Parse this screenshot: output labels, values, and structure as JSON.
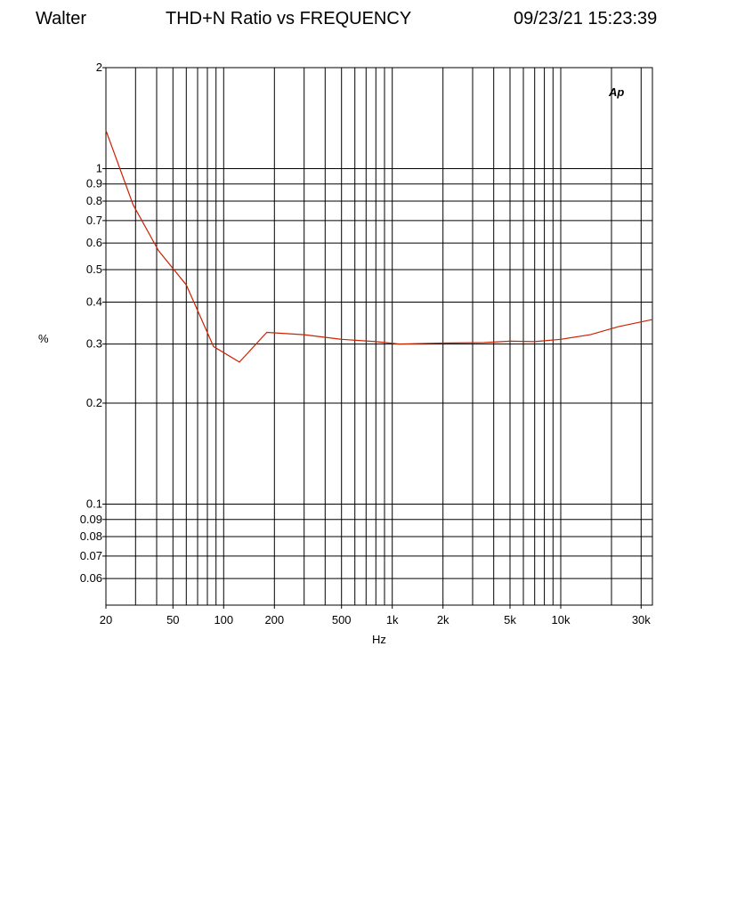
{
  "header": {
    "left": "Walter",
    "title": "THD+N Ratio vs FREQUENCY",
    "right": "09/23/21 15:23:39"
  },
  "logo": {
    "text": "Ap",
    "color": "#1f4fe0"
  },
  "chart_data": {
    "type": "line",
    "title": "THD+N Ratio vs FREQUENCY",
    "xlabel": "Hz",
    "ylabel": "%",
    "x_scale": "log",
    "y_scale": "log",
    "xlim": [
      20,
      35000
    ],
    "ylim": [
      0.05,
      2
    ],
    "grid": true,
    "x_ticks": [
      {
        "v": 20,
        "label": "20"
      },
      {
        "v": 50,
        "label": "50"
      },
      {
        "v": 100,
        "label": "100"
      },
      {
        "v": 200,
        "label": "200"
      },
      {
        "v": 500,
        "label": "500"
      },
      {
        "v": 1000,
        "label": "1k"
      },
      {
        "v": 2000,
        "label": "2k"
      },
      {
        "v": 5000,
        "label": "5k"
      },
      {
        "v": 10000,
        "label": "10k"
      },
      {
        "v": 30000,
        "label": "30k"
      }
    ],
    "x_gridlines": [
      20,
      30,
      40,
      50,
      60,
      70,
      80,
      90,
      100,
      200,
      300,
      400,
      500,
      600,
      700,
      800,
      900,
      1000,
      2000,
      3000,
      4000,
      5000,
      6000,
      7000,
      8000,
      9000,
      10000,
      20000,
      30000
    ],
    "y_ticks": [
      {
        "v": 0.06,
        "label": "0.06"
      },
      {
        "v": 0.07,
        "label": "0.07"
      },
      {
        "v": 0.08,
        "label": "0.08"
      },
      {
        "v": 0.09,
        "label": "0.09"
      },
      {
        "v": 0.1,
        "label": "0.1"
      },
      {
        "v": 0.2,
        "label": "0.2"
      },
      {
        "v": 0.3,
        "label": "0.3"
      },
      {
        "v": 0.4,
        "label": "0.4"
      },
      {
        "v": 0.5,
        "label": "0.5"
      },
      {
        "v": 0.6,
        "label": "0.6"
      },
      {
        "v": 0.7,
        "label": "0.7"
      },
      {
        "v": 0.8,
        "label": "0.8"
      },
      {
        "v": 0.9,
        "label": "0.9"
      },
      {
        "v": 1,
        "label": "1"
      },
      {
        "v": 2,
        "label": "2"
      }
    ],
    "series": [
      {
        "color": "#cc2200",
        "points": [
          [
            20,
            1.3
          ],
          [
            29,
            0.78
          ],
          [
            41,
            0.57
          ],
          [
            60,
            0.45
          ],
          [
            87,
            0.295
          ],
          [
            124,
            0.265
          ],
          [
            180,
            0.325
          ],
          [
            300,
            0.32
          ],
          [
            500,
            0.31
          ],
          [
            800,
            0.305
          ],
          [
            1100,
            0.3
          ],
          [
            2000,
            0.302
          ],
          [
            3500,
            0.303
          ],
          [
            5000,
            0.306
          ],
          [
            7000,
            0.305
          ],
          [
            10000,
            0.31
          ],
          [
            15000,
            0.32
          ],
          [
            22000,
            0.338
          ],
          [
            35000,
            0.355
          ]
        ]
      }
    ]
  }
}
